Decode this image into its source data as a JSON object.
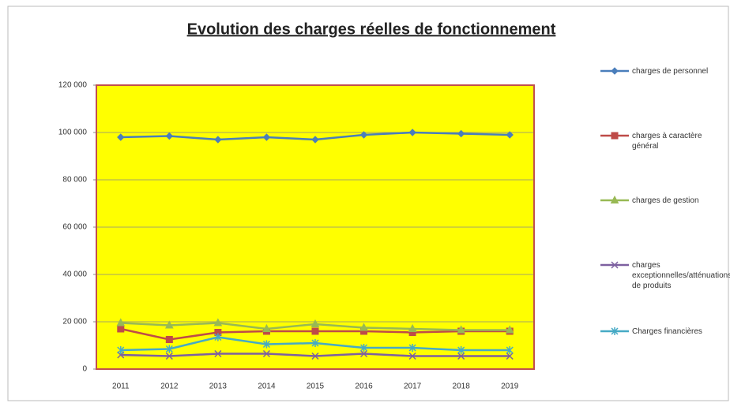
{
  "chart_data": {
    "type": "line",
    "title": "Evolution des charges réelles de fonctionnement",
    "categories": [
      "2011",
      "2012",
      "2013",
      "2014",
      "2015",
      "2016",
      "2017",
      "2018",
      "2019"
    ],
    "series": [
      {
        "name": "charges de personnel",
        "color": "#4a7ebb",
        "marker": "diamond",
        "values": [
          98000,
          98500,
          97000,
          98000,
          97000,
          99000,
          100000,
          99500,
          99000
        ]
      },
      {
        "name": "charges à caractère général",
        "color": "#be4b48",
        "marker": "square",
        "values": [
          17000,
          12500,
          15500,
          16000,
          16000,
          16000,
          15500,
          16000,
          16000
        ]
      },
      {
        "name": "charges de gestion",
        "color": "#98b954",
        "marker": "triangle",
        "values": [
          19500,
          18500,
          19500,
          17000,
          19000,
          17500,
          17000,
          16500,
          16500
        ]
      },
      {
        "name": "charges exceptionnelles/atténuations de produits",
        "color": "#7d60a0",
        "marker": "x",
        "values": [
          6000,
          5500,
          6500,
          6500,
          5500,
          6500,
          5500,
          5500,
          5500
        ]
      },
      {
        "name": "Charges financières",
        "color": "#46aac5",
        "marker": "star",
        "values": [
          8000,
          8500,
          13500,
          10500,
          11000,
          9000,
          9000,
          8000,
          8000
        ]
      }
    ],
    "ylim": [
      0,
      120000
    ],
    "yticks": [
      0,
      {
        "value": 20000,
        "label": "20 000"
      },
      {
        "value": 40000,
        "label": "40 000"
      },
      {
        "value": 60000,
        "label": "60 000"
      },
      {
        "value": 80000,
        "label": "80 000"
      },
      {
        "value": 100000,
        "label": "100 000"
      },
      {
        "value": 120000,
        "label": "120 000"
      }
    ],
    "grid": true,
    "legend": "right",
    "plot_background": "#ffff00"
  }
}
